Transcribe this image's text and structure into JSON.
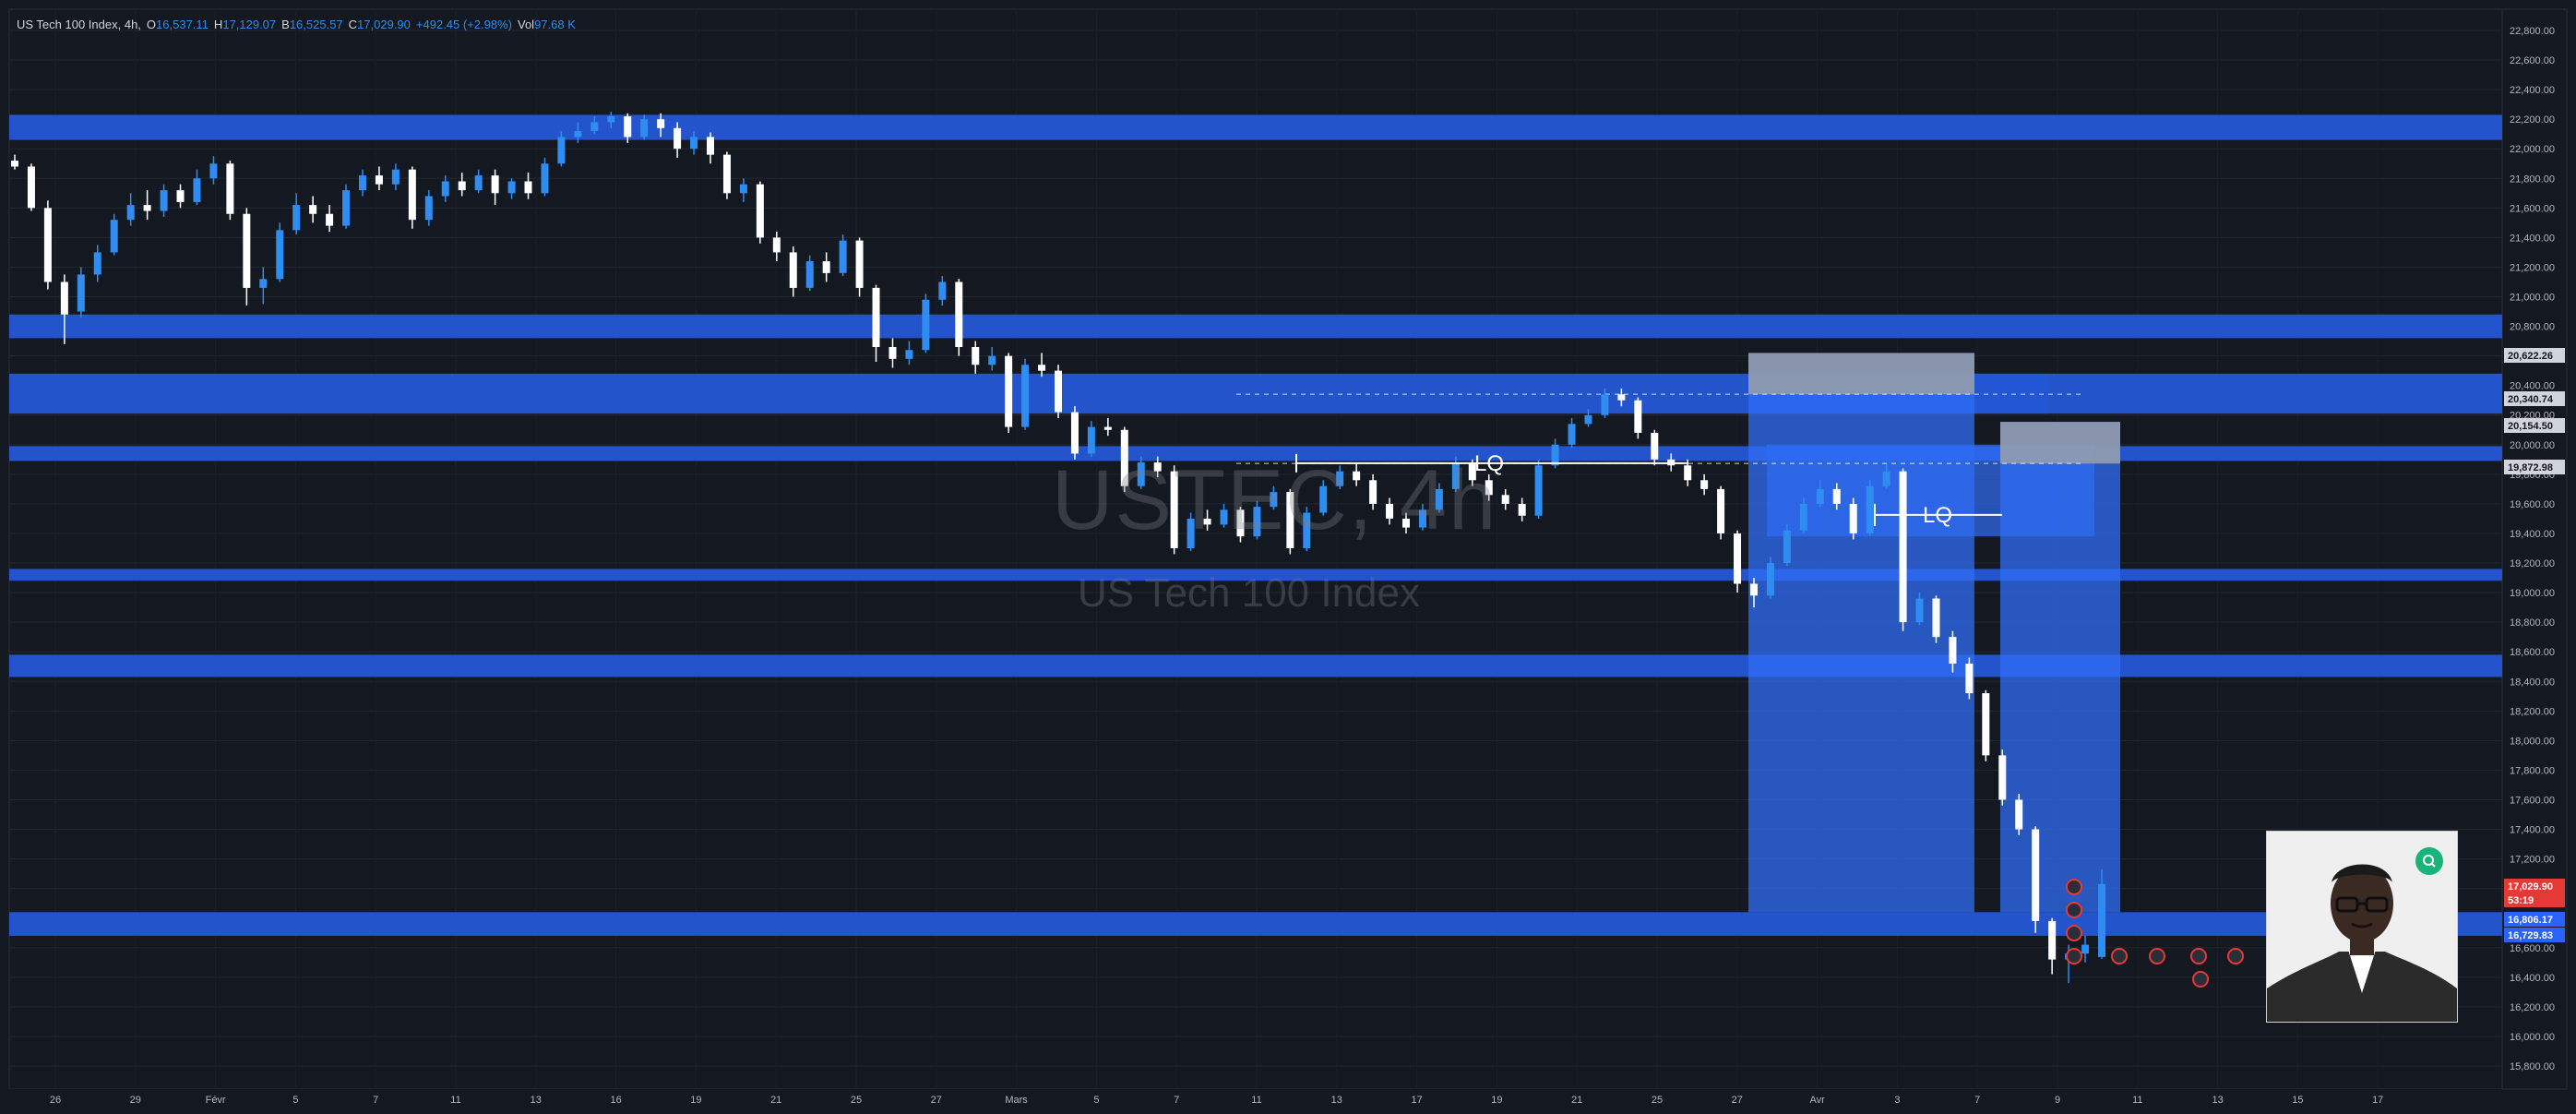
{
  "header": {
    "title": "US Tech 100 Index, 4h,",
    "open_label": "O",
    "open": "16,537.11",
    "high_label": "H",
    "high": "17,129.07",
    "low_label": "B",
    "low": "16,525.57",
    "close_label": "C",
    "close": "17,029.90",
    "change": "+492.45 (+2.98%)",
    "vol_label": "Vol",
    "vol": "97.68 K"
  },
  "watermark": {
    "symbol": "USTEC, 4h",
    "description": "US Tech 100 Index"
  },
  "colors": {
    "background": "#141820",
    "grid": "#22262f",
    "zone": "#2457d6",
    "up_candle": "#2f8cf0",
    "down_candle": "#ffffff",
    "price_tag_red": "#e53935",
    "price_tag_blue": "#2962ff",
    "price_tag_gray": "#d1d4dc"
  },
  "chart_data": {
    "type": "candlestick",
    "symbol": "USTEC",
    "interval": "4h",
    "y_axis": {
      "min": 15800,
      "max": 22800,
      "ticks": [
        "22,800.00",
        "22,600.00",
        "22,400.00",
        "22,200.00",
        "22,000.00",
        "21,800.00",
        "21,600.00",
        "21,400.00",
        "21,200.00",
        "21,000.00",
        "20,800.00",
        "20,600.00",
        "20,400.00",
        "20,200.00",
        "20,000.00",
        "19,800.00",
        "19,600.00",
        "19,400.00",
        "19,200.00",
        "19,000.00",
        "18,800.00",
        "18,600.00",
        "18,400.00",
        "18,200.00",
        "18,000.00",
        "17,800.00",
        "17,600.00",
        "17,400.00",
        "17,200.00",
        "17,000.00",
        "16,800.00",
        "16,600.00",
        "16,400.00",
        "16,200.00",
        "16,000.00",
        "15,800.00"
      ]
    },
    "x_axis": {
      "ticks": [
        "26",
        "29",
        "Févr",
        "5",
        "7",
        "11",
        "13",
        "16",
        "19",
        "21",
        "25",
        "27",
        "Mars",
        "5",
        "7",
        "11",
        "13",
        "17",
        "19",
        "21",
        "25",
        "27",
        "Avr",
        "3",
        "7",
        "9",
        "11",
        "13",
        "15",
        "17"
      ]
    },
    "zones": [
      {
        "from": 22060,
        "to": 22230
      },
      {
        "from": 20720,
        "to": 20880
      },
      {
        "from": 20210,
        "to": 20480
      },
      {
        "from": 19890,
        "to": 19990
      },
      {
        "from": 19080,
        "to": 19160
      },
      {
        "from": 18430,
        "to": 18580
      },
      {
        "from": 16680,
        "to": 16840
      }
    ],
    "annotations": [
      {
        "text": "LQ",
        "price": 19875
      },
      {
        "text": "LQ",
        "price": 19525
      }
    ],
    "horizontal_levels": [
      20340.74,
      19872.98
    ],
    "price_labels": [
      {
        "value": "20,622.26",
        "style": "gray"
      },
      {
        "value": "20,340.74",
        "style": "gray"
      },
      {
        "value": "20,154.50",
        "style": "gray"
      },
      {
        "value": "19,872.98",
        "style": "gray"
      },
      {
        "value": "17,029.90",
        "style": "red"
      },
      {
        "value": "53:19",
        "style": "red"
      },
      {
        "value": "16,806.17",
        "style": "blue"
      },
      {
        "value": "16,729.83",
        "style": "blue"
      }
    ],
    "last_price": 17029.9,
    "series": [
      {
        "values": [
          [
            21920,
            21880,
            21960,
            21860
          ],
          [
            21880,
            21600,
            21900,
            21580
          ],
          [
            21600,
            21100,
            21650,
            21050
          ],
          [
            21100,
            20880,
            21150,
            20680
          ],
          [
            20900,
            21150,
            21200,
            20860
          ],
          [
            21150,
            21300,
            21350,
            21100
          ],
          [
            21300,
            21520,
            21560,
            21280
          ],
          [
            21520,
            21620,
            21700,
            21480
          ],
          [
            21620,
            21580,
            21720,
            21520
          ],
          [
            21580,
            21720,
            21760,
            21540
          ],
          [
            21720,
            21640,
            21760,
            21600
          ],
          [
            21640,
            21800,
            21860,
            21620
          ],
          [
            21800,
            21900,
            21950,
            21760
          ],
          [
            21900,
            21560,
            21920,
            21520
          ],
          [
            21560,
            21060,
            21600,
            20940
          ],
          [
            21060,
            21120,
            21200,
            20950
          ],
          [
            21120,
            21450,
            21500,
            21100
          ],
          [
            21450,
            21620,
            21700,
            21420
          ],
          [
            21620,
            21560,
            21680,
            21500
          ],
          [
            21560,
            21480,
            21620,
            21440
          ],
          [
            21480,
            21720,
            21760,
            21460
          ],
          [
            21720,
            21820,
            21860,
            21680
          ],
          [
            21820,
            21760,
            21880,
            21720
          ],
          [
            21760,
            21860,
            21900,
            21720
          ],
          [
            21860,
            21520,
            21880,
            21460
          ],
          [
            21520,
            21680,
            21720,
            21480
          ],
          [
            21680,
            21780,
            21820,
            21640
          ],
          [
            21780,
            21720,
            21840,
            21680
          ],
          [
            21720,
            21820,
            21860,
            21700
          ],
          [
            21820,
            21700,
            21860,
            21620
          ],
          [
            21700,
            21780,
            21800,
            21660
          ],
          [
            21780,
            21700,
            21840,
            21660
          ],
          [
            21700,
            21900,
            21940,
            21680
          ],
          [
            21900,
            22080,
            22120,
            21880
          ],
          [
            22080,
            22120,
            22180,
            22040
          ],
          [
            22120,
            22180,
            22220,
            22100
          ],
          [
            22180,
            22220,
            22250,
            22140
          ],
          [
            22220,
            22080,
            22240,
            22040
          ],
          [
            22080,
            22200,
            22230,
            22060
          ],
          [
            22200,
            22140,
            22240,
            22080
          ],
          [
            22140,
            22000,
            22180,
            21940
          ],
          [
            22000,
            22080,
            22120,
            21960
          ],
          [
            22080,
            21960,
            22110,
            21900
          ],
          [
            21960,
            21700,
            21980,
            21660
          ],
          [
            21700,
            21760,
            21800,
            21640
          ],
          [
            21760,
            21400,
            21780,
            21360
          ],
          [
            21400,
            21300,
            21440,
            21240
          ],
          [
            21300,
            21060,
            21340,
            21000
          ],
          [
            21060,
            21240,
            21280,
            21040
          ],
          [
            21240,
            21160,
            21300,
            21100
          ],
          [
            21160,
            21380,
            21420,
            21140
          ],
          [
            21380,
            21060,
            21400,
            21000
          ],
          [
            21060,
            20660,
            21080,
            20560
          ],
          [
            20660,
            20580,
            20720,
            20520
          ],
          [
            20580,
            20640,
            20700,
            20540
          ],
          [
            20640,
            20980,
            21020,
            20620
          ],
          [
            20980,
            21100,
            21140,
            20940
          ],
          [
            21100,
            20660,
            21120,
            20600
          ],
          [
            20660,
            20540,
            20700,
            20480
          ],
          [
            20540,
            20600,
            20660,
            20500
          ],
          [
            20600,
            20120,
            20620,
            20080
          ],
          [
            20120,
            20540,
            20580,
            20100
          ],
          [
            20540,
            20500,
            20620,
            20460
          ],
          [
            20500,
            20220,
            20540,
            20180
          ],
          [
            20220,
            19940,
            20260,
            19900
          ],
          [
            19940,
            20120,
            20160,
            19920
          ],
          [
            20120,
            20100,
            20180,
            20060
          ],
          [
            20100,
            19720,
            20120,
            19680
          ],
          [
            19720,
            19880,
            19920,
            19700
          ],
          [
            19880,
            19820,
            19920,
            19780
          ],
          [
            19820,
            19300,
            19860,
            19260
          ],
          [
            19300,
            19500,
            19540,
            19280
          ],
          [
            19500,
            19460,
            19560,
            19420
          ],
          [
            19460,
            19560,
            19600,
            19440
          ],
          [
            19560,
            19380,
            19580,
            19340
          ],
          [
            19380,
            19580,
            19620,
            19360
          ],
          [
            19580,
            19680,
            19720,
            19560
          ],
          [
            19680,
            19300,
            19700,
            19260
          ],
          [
            19300,
            19540,
            19580,
            19280
          ],
          [
            19540,
            19720,
            19760,
            19520
          ],
          [
            19720,
            19820,
            19860,
            19700
          ],
          [
            19820,
            19760,
            19880,
            19720
          ],
          [
            19760,
            19600,
            19800,
            19560
          ],
          [
            19600,
            19500,
            19640,
            19460
          ],
          [
            19500,
            19440,
            19540,
            19400
          ],
          [
            19440,
            19560,
            19600,
            19420
          ],
          [
            19560,
            19700,
            19740,
            19540
          ],
          [
            19700,
            19880,
            19920,
            19680
          ],
          [
            19880,
            19760,
            19900,
            19720
          ],
          [
            19760,
            19660,
            19800,
            19620
          ],
          [
            19660,
            19600,
            19700,
            19560
          ],
          [
            19600,
            19520,
            19640,
            19480
          ],
          [
            19520,
            19860,
            19900,
            19500
          ],
          [
            19860,
            20000,
            20040,
            19840
          ],
          [
            20000,
            20140,
            20180,
            19980
          ],
          [
            20140,
            20200,
            20240,
            20120
          ],
          [
            20200,
            20340,
            20380,
            20180
          ],
          [
            20340,
            20300,
            20380,
            20260
          ],
          [
            20300,
            20080,
            20320,
            20040
          ],
          [
            20080,
            19900,
            20100,
            19860
          ],
          [
            19900,
            19860,
            19940,
            19820
          ],
          [
            19860,
            19760,
            19900,
            19720
          ],
          [
            19760,
            19700,
            19800,
            19660
          ],
          [
            19700,
            19400,
            19720,
            19360
          ],
          [
            19400,
            19060,
            19420,
            19000
          ],
          [
            19060,
            18980,
            19100,
            18900
          ],
          [
            18980,
            19200,
            19240,
            18960
          ],
          [
            19200,
            19420,
            19460,
            19180
          ],
          [
            19420,
            19600,
            19640,
            19400
          ],
          [
            19600,
            19700,
            19760,
            19580
          ],
          [
            19700,
            19600,
            19740,
            19560
          ],
          [
            19600,
            19400,
            19640,
            19360
          ],
          [
            19400,
            19720,
            19760,
            19380
          ],
          [
            19720,
            19820,
            19870,
            19700
          ],
          [
            19820,
            18800,
            19840,
            18740
          ],
          [
            18800,
            18960,
            19000,
            18780
          ],
          [
            18960,
            18700,
            18980,
            18660
          ],
          [
            18700,
            18520,
            18740,
            18460
          ],
          [
            18520,
            18320,
            18560,
            18280
          ],
          [
            18320,
            17900,
            18340,
            17860
          ],
          [
            17900,
            17600,
            17940,
            17560
          ],
          [
            17600,
            17400,
            17640,
            17360
          ],
          [
            17400,
            16780,
            17420,
            16700
          ],
          [
            16780,
            16520,
            16800,
            16420
          ],
          [
            16520,
            16560,
            16620,
            16360
          ],
          [
            16560,
            16620,
            16680,
            16500
          ],
          [
            16537,
            17030,
            17129,
            16525
          ]
        ]
      }
    ],
    "event_markers_count": 9
  }
}
